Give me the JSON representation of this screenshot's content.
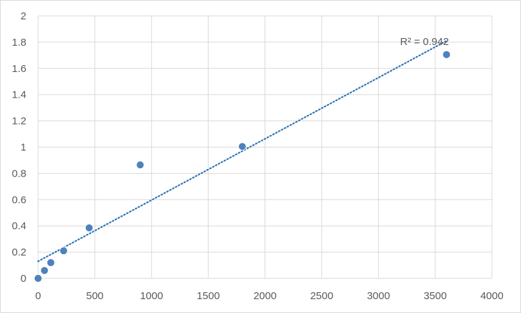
{
  "chart_data": {
    "type": "scatter",
    "title": "",
    "xlabel": "",
    "ylabel": "",
    "xlim": [
      0,
      4000
    ],
    "ylim": [
      0,
      2
    ],
    "x_ticks": [
      "0",
      "500",
      "1000",
      "1500",
      "2000",
      "2500",
      "3000",
      "3500",
      "4000"
    ],
    "y_ticks": [
      "0",
      "0.2",
      "0.4",
      "0.6",
      "0.8",
      "1",
      "1.2",
      "1.4",
      "1.6",
      "1.8",
      "2"
    ],
    "grid": true,
    "legend": "none",
    "series": [
      {
        "color": "#4f81bd",
        "points": [
          {
            "x": 0,
            "y": 0.0
          },
          {
            "x": 56,
            "y": 0.06
          },
          {
            "x": 112,
            "y": 0.12
          },
          {
            "x": 225,
            "y": 0.21
          },
          {
            "x": 450,
            "y": 0.385
          },
          {
            "x": 900,
            "y": 0.865
          },
          {
            "x": 1800,
            "y": 1.005
          },
          {
            "x": 3600,
            "y": 1.705
          }
        ]
      }
    ],
    "trendline": {
      "type": "linear",
      "style": "dotted",
      "color": "#2e75b6",
      "x_range": [
        0,
        3600
      ],
      "y_range": [
        0.13,
        1.81
      ],
      "label": "R² = 0.942"
    }
  }
}
